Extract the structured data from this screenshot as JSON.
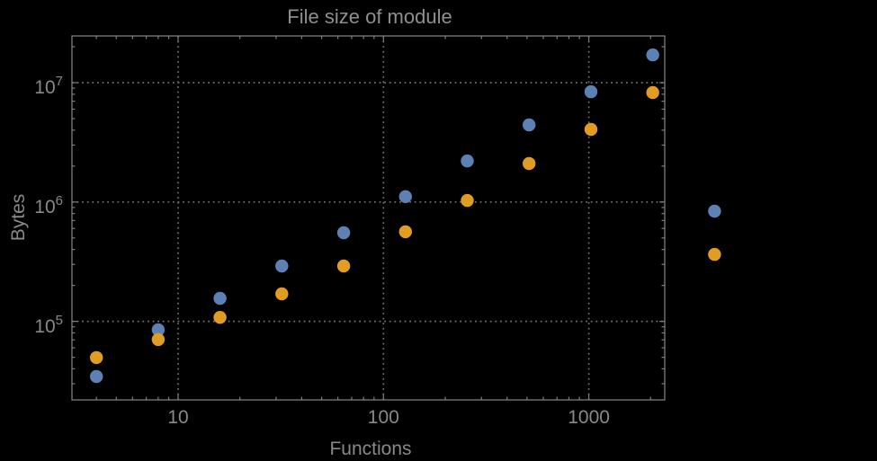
{
  "window": {
    "background_color": "#000000"
  },
  "chart_data": {
    "type": "scatter",
    "title": "File size of module",
    "xlabel": "Functions",
    "ylabel": "Bytes",
    "x_scale": "log",
    "y_scale": "log",
    "xlim": [
      3.05,
      2320
    ],
    "ylim": [
      22000,
      24600000
    ],
    "grid": "dotted gray lines at each decade, frame ticks inward on all four edges",
    "legend": "none",
    "x_tick_labels": [
      "10",
      "100",
      "1000"
    ],
    "x_grid_at": [
      10,
      100,
      1000
    ],
    "y_tick_labels": [
      {
        "base": "10",
        "exp": "5"
      },
      {
        "base": "10",
        "exp": "6"
      },
      {
        "base": "10",
        "exp": "7"
      }
    ],
    "y_grid_at": [
      100000,
      1000000,
      10000000
    ],
    "x": [
      4,
      8,
      16,
      32,
      64,
      128,
      256,
      512,
      1024,
      2048,
      4096
    ],
    "series": [
      {
        "name": "blue-series",
        "color": "#5e81b5",
        "values": [
          34500,
          85000,
          156000,
          291000,
          553000,
          1110000,
          2210000,
          4430000,
          8400000,
          17100000,
          838000
        ]
      },
      {
        "name": "orange-series",
        "color": "#e19c24",
        "values": [
          49700,
          70300,
          108000,
          170000,
          291000,
          563000,
          1030000,
          2100000,
          4060000,
          8270000,
          364000
        ]
      }
    ],
    "note_points_outside_frame": "the pair at x=4096 is drawn beyond the right frame edge"
  },
  "colors": {
    "background": "#000000",
    "frame": "#7d7d7d",
    "gridline": "#6f6f6f",
    "text": "#898989",
    "series_blue": "#5e81b5",
    "series_orange": "#e19c24"
  }
}
